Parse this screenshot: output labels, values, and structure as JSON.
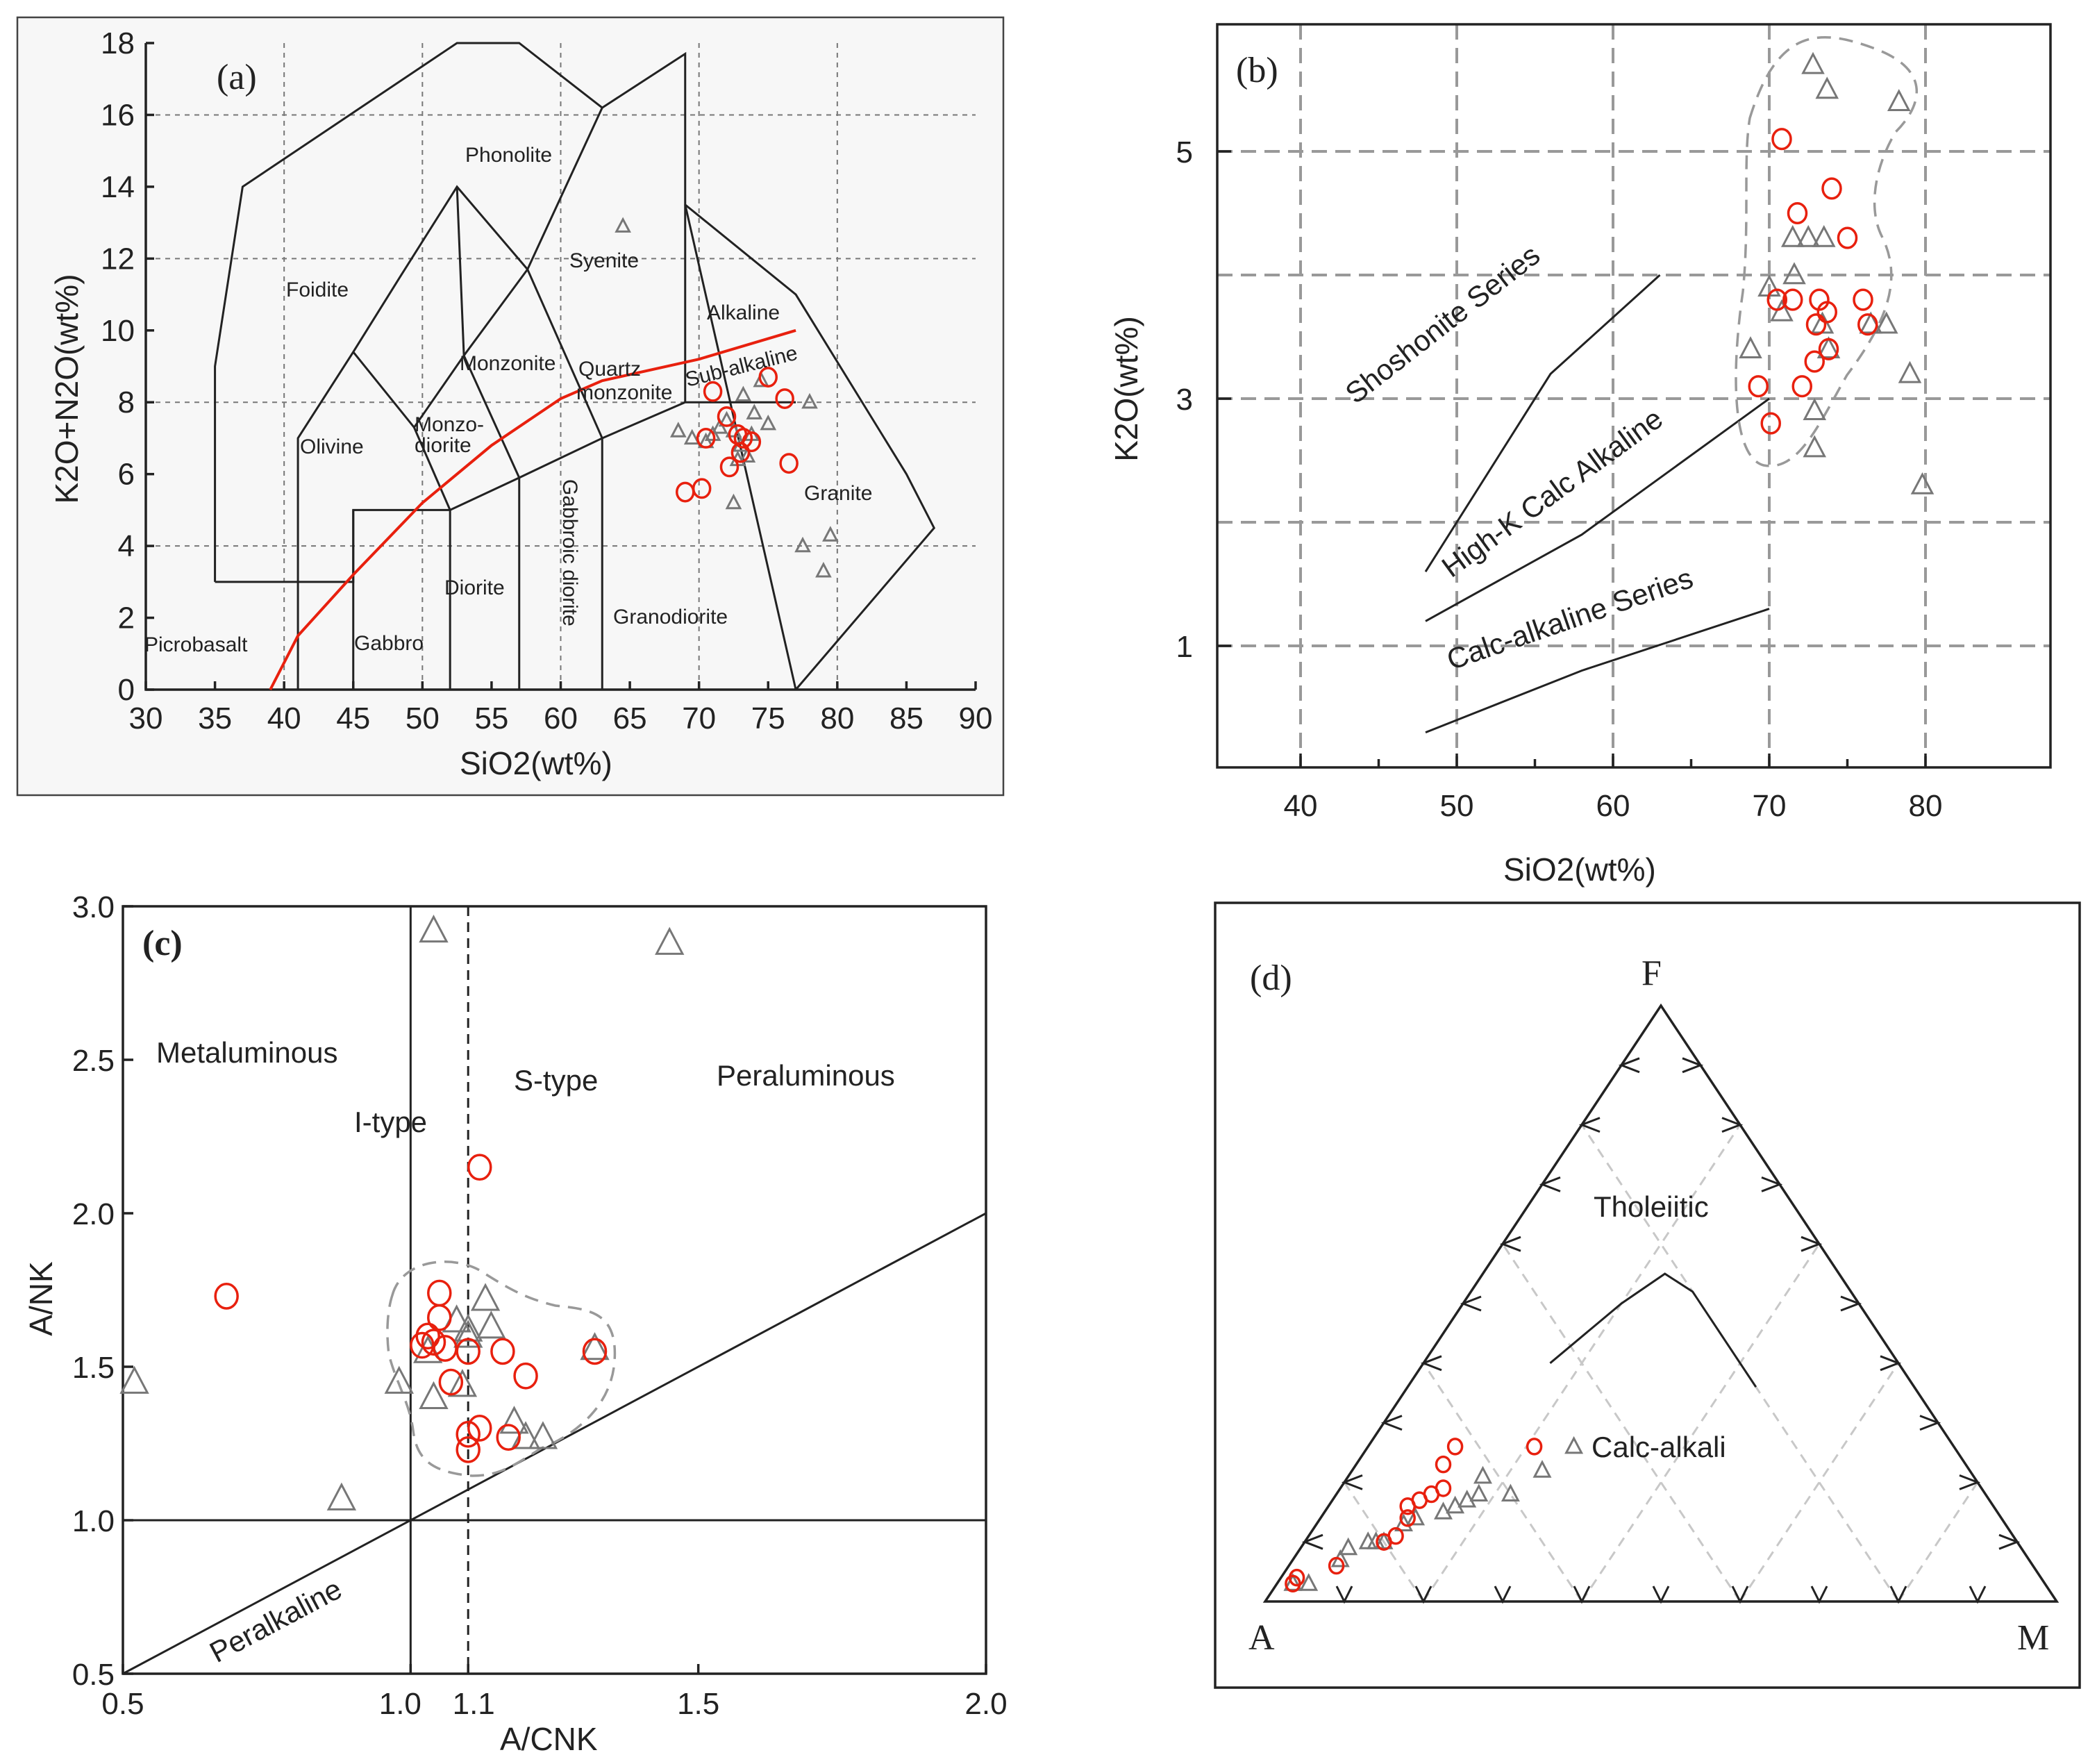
{
  "chart_data": [
    {
      "type": "scatter",
      "panel": "(a)",
      "xlabel": "SiO2(wt%)",
      "ylabel": "K2O+N2O(wt%)",
      "xlim": [
        30,
        90
      ],
      "ylim": [
        0,
        18
      ],
      "xticks": [
        "30",
        "35",
        "40",
        "45",
        "50",
        "55",
        "60",
        "65",
        "70",
        "75",
        "80",
        "85",
        "90"
      ],
      "yticks": [
        "0",
        "2",
        "4",
        "6",
        "8",
        "10",
        "12",
        "14",
        "16",
        "18"
      ],
      "fields": [
        "Phonolite",
        "Foidite",
        "Syenite",
        "Alkaline",
        "Monzonite",
        "Quartz",
        "monzonite",
        "Sub-alkaline",
        "Olivine",
        "Monzo-",
        "diorite",
        "Diorite",
        "Gabbroic diorite",
        "Granite",
        "Granodiorite",
        "Picrobasalt",
        "Gabbro"
      ],
      "divider_line": {
        "x": [
          39,
          41,
          45,
          50,
          55,
          60,
          63,
          70,
          77
        ],
        "y": [
          0,
          1.5,
          3.2,
          5.2,
          6.8,
          8.1,
          8.6,
          9.2,
          10
        ]
      },
      "series": [
        {
          "name": "circles",
          "x": [
            71,
            72,
            69,
            70.2,
            72.2,
            73,
            73.8,
            73.2,
            75,
            76.2,
            76.5,
            72.8,
            70.5
          ],
          "y": [
            8.3,
            7.6,
            5.5,
            5.6,
            6.2,
            6.6,
            6.9,
            7,
            8.7,
            8.1,
            6.3,
            7.1,
            7
          ]
        },
        {
          "name": "triangles",
          "x": [
            64.5,
            68.5,
            69.5,
            70.5,
            71,
            71.5,
            72,
            72.5,
            73,
            73.5,
            74,
            74.5,
            73.2,
            72.8,
            73.8,
            75,
            78,
            77.5,
            79,
            79.5,
            72.5
          ],
          "y": [
            12.9,
            7.2,
            7,
            6.9,
            7.1,
            7.3,
            7.5,
            7.2,
            6.8,
            6.5,
            7.7,
            8.6,
            8.2,
            6.4,
            7.1,
            7.4,
            8,
            4,
            3.3,
            4.3,
            5.2
          ]
        }
      ]
    },
    {
      "type": "scatter",
      "panel": "(b)",
      "xlabel": "SiO2(wt%)",
      "ylabel": "K2O(wt%)",
      "xlim": [
        35,
        88
      ],
      "ylim": [
        0,
        6
      ],
      "xticks": [
        "40",
        "50",
        "60",
        "70",
        "80"
      ],
      "yticks": [
        "1",
        "3",
        "5"
      ],
      "series_lines": [
        "Shoshonite Series",
        "High-K Calc Alkaline",
        "Calc-alkaline Series"
      ],
      "boundaries": [
        {
          "x": [
            48,
            56,
            63
          ],
          "y": [
            1.6,
            3.2,
            4.0
          ]
        },
        {
          "x": [
            48,
            58,
            70
          ],
          "y": [
            1.2,
            1.9,
            3.0
          ]
        },
        {
          "x": [
            48,
            58,
            70
          ],
          "y": [
            0.3,
            0.8,
            1.3
          ]
        }
      ],
      "series": [
        {
          "name": "circles",
          "x": [
            70.8,
            71.8,
            74,
            75,
            70.5,
            71.5,
            73.2,
            73.7,
            76,
            76.3,
            73,
            73.8,
            72.9,
            72.1,
            69.3,
            70.1
          ],
          "y": [
            5.1,
            4.5,
            4.7,
            4.3,
            3.8,
            3.8,
            3.8,
            3.7,
            3.8,
            3.6,
            3.6,
            3.4,
            3.3,
            3.1,
            3.1,
            2.8
          ]
        },
        {
          "name": "triangles",
          "x": [
            72.8,
            73.7,
            78.3,
            71.5,
            72.5,
            73.5,
            71.6,
            70,
            70.8,
            73.4,
            77.5,
            76.5,
            73.8,
            68.8,
            79,
            72.9,
            72.9,
            79.8
          ],
          "y": [
            5.7,
            5.5,
            5.4,
            4.3,
            4.3,
            4.3,
            4.0,
            3.9,
            3.7,
            3.6,
            3.6,
            3.6,
            3.4,
            3.4,
            3.2,
            2.9,
            2.6,
            2.3
          ]
        }
      ]
    },
    {
      "type": "scatter",
      "panel": "(c)",
      "xlabel": "A/CNK",
      "ylabel": "A/NK",
      "xlim": [
        0.5,
        2.0
      ],
      "ylim": [
        0.5,
        3.0
      ],
      "xticks": [
        "0.5",
        "1.0",
        "1.1",
        "1.5",
        "2.0"
      ],
      "yticks": [
        "0.5",
        "1.0",
        "1.5",
        "2.0",
        "2.5",
        "3.0"
      ],
      "fields": [
        "Metaluminous",
        "I-type",
        "S-type",
        "Peraluminous",
        "Peralkaline"
      ],
      "series": [
        {
          "name": "circles",
          "x": [
            0.68,
            1.05,
            1.05,
            1.02,
            1.04,
            1.06,
            1.03,
            1.1,
            1.07,
            1.16,
            1.2,
            1.32,
            1.12,
            1.17,
            1.12,
            1.1,
            1.1
          ],
          "y": [
            1.73,
            1.74,
            1.66,
            1.57,
            1.58,
            1.56,
            1.6,
            1.55,
            1.45,
            1.55,
            1.47,
            1.55,
            2.15,
            1.27,
            1.3,
            1.23,
            1.28
          ]
        },
        {
          "name": "triangles",
          "x": [
            0.52,
            0.88,
            1.04,
            1.45,
            0.98,
            1.03,
            1.04,
            1.08,
            1.1,
            1.13,
            1.09,
            1.14,
            1.18,
            1.2,
            1.23,
            1.32,
            1.1
          ],
          "y": [
            1.45,
            1.07,
            2.92,
            2.88,
            1.45,
            1.55,
            1.4,
            1.65,
            1.6,
            1.72,
            1.44,
            1.63,
            1.32,
            1.27,
            1.27,
            1.56,
            1.62
          ]
        }
      ]
    },
    {
      "type": "ternary",
      "panel": "(d)",
      "vertices": [
        "F",
        "A",
        "M"
      ],
      "fields": [
        "Tholeiitic",
        "Calc-alkali"
      ],
      "boundary_AFM": [
        [
          44,
          40,
          16
        ],
        [
          30,
          50,
          20
        ],
        [
          22,
          55,
          23
        ],
        [
          20,
          52,
          28
        ],
        [
          20,
          36,
          44
        ]
      ],
      "series": [
        {
          "name": "circles",
          "points_AFM": [
            [
              95,
              3,
              2
            ],
            [
              94,
              4,
              2
            ],
            [
              88,
              6,
              6
            ],
            [
              80,
              10,
              10
            ],
            [
              78,
              11,
              11
            ],
            [
              75,
              14,
              11
            ],
            [
              74,
              16,
              10
            ],
            [
              72,
              17,
              11
            ],
            [
              70,
              18,
              12
            ],
            [
              68,
              19,
              13
            ],
            [
              66,
              23,
              11
            ],
            [
              63,
              26,
              11
            ],
            [
              53,
              26,
              21
            ]
          ]
        },
        {
          "name": "triangles",
          "points_AFM": [
            [
              95,
              3,
              2
            ],
            [
              93,
              3,
              4
            ],
            [
              87,
              7,
              6
            ],
            [
              85,
              9,
              6
            ],
            [
              82,
              10,
              8
            ],
            [
              81,
              10,
              9
            ],
            [
              80,
              10,
              10
            ],
            [
              76,
              13,
              11
            ],
            [
              74,
              14,
              12
            ],
            [
              70,
              15,
              15
            ],
            [
              68,
              16,
              16
            ],
            [
              66,
              17,
              17
            ],
            [
              64,
              18,
              18
            ],
            [
              62,
              21,
              17
            ],
            [
              60,
              18,
              22
            ],
            [
              54,
              22,
              24
            ],
            [
              48,
              26,
              26
            ]
          ]
        }
      ]
    }
  ]
}
